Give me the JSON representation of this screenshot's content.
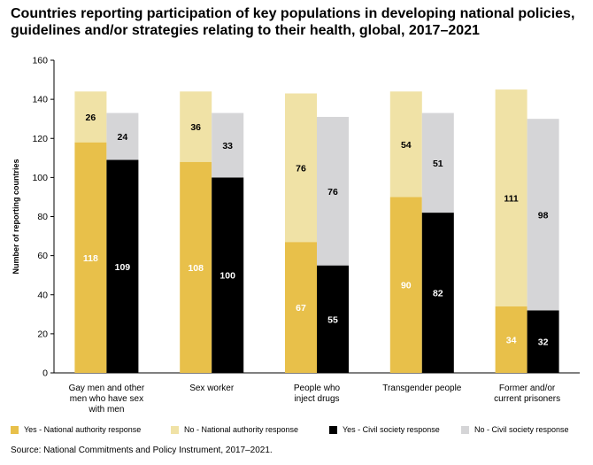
{
  "chart_data": {
    "type": "bar",
    "title": "Countries reporting participation of key populations in developing national policies, guidelines and/or strategies relating to their health, global, 2017–2021",
    "ylabel": "Number of reporting countries",
    "ylim": [
      0,
      160
    ],
    "yticks": [
      0,
      20,
      40,
      60,
      80,
      100,
      120,
      140,
      160
    ],
    "grid": false,
    "legend_position": "bottom",
    "categories": [
      [
        "Gay men and other",
        "men who have sex",
        "with men"
      ],
      [
        "Sex worker"
      ],
      [
        "People who",
        "inject drugs"
      ],
      [
        "Transgender people"
      ],
      [
        "Former and/or",
        "current prisoners"
      ]
    ],
    "stacks": [
      {
        "name": "National authority response",
        "series": [
          {
            "name": "Yes - National authority response",
            "color": "#e8c04a",
            "label_color": "#ffffff",
            "values": [
              118,
              108,
              67,
              90,
              34
            ]
          },
          {
            "name": "No - National authority response",
            "color": "#f0e2a6",
            "label_color": "#000000",
            "values": [
              26,
              36,
              76,
              54,
              111
            ]
          }
        ]
      },
      {
        "name": "Civil society response",
        "series": [
          {
            "name": "Yes - Civil society response",
            "color": "#000000",
            "label_color": "#ffffff",
            "values": [
              109,
              100,
              55,
              82,
              32
            ]
          },
          {
            "name": "No - Civil society response",
            "color": "#d5d5d7",
            "label_color": "#000000",
            "values": [
              24,
              33,
              76,
              51,
              98
            ]
          }
        ]
      }
    ],
    "legend": [
      {
        "label": "Yes - National authority response",
        "color": "#e8c04a"
      },
      {
        "label": "No - National authority response",
        "color": "#f0e2a6"
      },
      {
        "label": "Yes - Civil society response",
        "color": "#000000"
      },
      {
        "label": "No - Civil society response",
        "color": "#d5d5d7"
      }
    ],
    "source": "Source: National Commitments and Policy Instrument, 2017–2021."
  }
}
